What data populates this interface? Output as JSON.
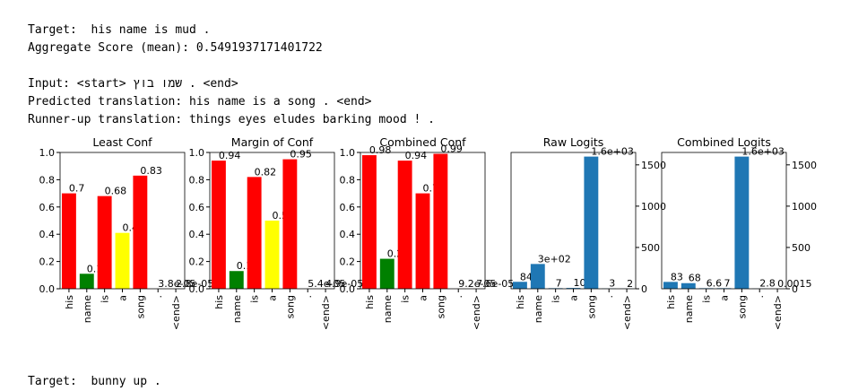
{
  "text": {
    "target": "Target:  his name is mud .",
    "aggregate": "Aggregate Score (mean): 0.5491937171401722",
    "input": "Input: <start> שמו בוץ . <end>",
    "predicted": "Predicted translation: his name is a song . <end>",
    "runner_up": "Runner-up translation: things eyes eludes barking mood ! .",
    "next_target": "Target:  bunny up ."
  },
  "chart_data": [
    {
      "type": "bar",
      "title": "Least Conf",
      "categories": [
        "his",
        "name",
        "is",
        "a",
        "song",
        ".",
        "<end>"
      ],
      "values": [
        0.7,
        0.11,
        0.68,
        0.41,
        0.83,
        3.8e-05,
        2.8e-05
      ],
      "value_labels": [
        "0.7",
        "0.11",
        "0.68",
        "0.41",
        "0.83",
        "3.8e-05",
        "2.8e-05"
      ],
      "colors": [
        "#ff0000",
        "#008000",
        "#ff0000",
        "#ffff00",
        "#ff0000",
        "#ff0000",
        "#ff0000"
      ],
      "ylim": [
        0,
        1
      ],
      "yticks": [
        {
          "value": 0,
          "label": "0.0"
        },
        {
          "value": 0.2,
          "label": "0.2"
        },
        {
          "value": 0.4,
          "label": "0.4"
        },
        {
          "value": 0.6,
          "label": "0.6"
        },
        {
          "value": 0.8,
          "label": "0.8"
        },
        {
          "value": 1,
          "label": "1.0"
        }
      ],
      "y_axis_side": "left"
    },
    {
      "type": "bar",
      "title": "Margin of Conf",
      "categories": [
        "his",
        "name",
        "is",
        "a",
        "song",
        ".",
        "<end>"
      ],
      "values": [
        0.94,
        0.13,
        0.82,
        0.5,
        0.95,
        5.4e-05,
        4.9e-05
      ],
      "value_labels": [
        "0.94",
        "0.13",
        "0.82",
        "0.5",
        "0.95",
        "5.4e-05",
        "4.9e-05"
      ],
      "colors": [
        "#ff0000",
        "#008000",
        "#ff0000",
        "#ffff00",
        "#ff0000",
        "#ff0000",
        "#ff0000"
      ],
      "ylim": [
        0,
        1
      ],
      "yticks": [
        {
          "value": 0,
          "label": "0.0"
        },
        {
          "value": 0.2,
          "label": "0.2"
        },
        {
          "value": 0.4,
          "label": "0.4"
        },
        {
          "value": 0.6,
          "label": "0.6"
        },
        {
          "value": 0.8,
          "label": "0.8"
        },
        {
          "value": 1,
          "label": "1.0"
        }
      ],
      "y_axis_side": "left"
    },
    {
      "type": "bar",
      "title": "Combined Conf",
      "categories": [
        "his",
        "name",
        "is",
        "a",
        "song",
        ".",
        "<end>"
      ],
      "values": [
        0.98,
        0.22,
        0.94,
        0.7,
        0.99,
        9.2e-05,
        7.6e-05
      ],
      "value_labels": [
        "0.98",
        "0.22",
        "0.94",
        "0.7",
        "0.99",
        "9.2e-05",
        "7.6e-05"
      ],
      "colors": [
        "#ff0000",
        "#008000",
        "#ff0000",
        "#ff0000",
        "#ff0000",
        "#ff0000",
        "#ff0000"
      ],
      "ylim": [
        0,
        1
      ],
      "yticks": [
        {
          "value": 0,
          "label": "0.0"
        },
        {
          "value": 0.2,
          "label": "0.2"
        },
        {
          "value": 0.4,
          "label": "0.4"
        },
        {
          "value": 0.6,
          "label": "0.6"
        },
        {
          "value": 0.8,
          "label": "0.8"
        },
        {
          "value": 1,
          "label": "1.0"
        }
      ],
      "y_axis_side": "left"
    },
    {
      "type": "bar",
      "title": "Raw Logits",
      "categories": [
        "his",
        "name",
        "is",
        "a",
        "song",
        ".",
        "<end>"
      ],
      "values": [
        84,
        300,
        7,
        10,
        1600,
        3,
        2
      ],
      "value_labels": [
        "84",
        "3e+02",
        "7",
        "10",
        "1.6e+03",
        "3",
        "2"
      ],
      "colors": [
        "#1f77b4",
        "#1f77b4",
        "#1f77b4",
        "#1f77b4",
        "#1f77b4",
        "#1f77b4",
        "#1f77b4"
      ],
      "ylim": [
        0,
        1650
      ],
      "yticks": [
        0,
        500,
        1000,
        1500
      ],
      "y_axis_side": "right"
    },
    {
      "type": "bar",
      "title": "Combined Logits",
      "categories": [
        "his",
        "name",
        "is",
        "a",
        "song",
        ".",
        "<end>"
      ],
      "values": [
        83,
        68,
        6.6,
        7,
        1600,
        2.8,
        0.0015
      ],
      "value_labels": [
        "83",
        "68",
        "6.6",
        "7",
        "1.6e+03",
        "2.8",
        "0.0015"
      ],
      "colors": [
        "#1f77b4",
        "#1f77b4",
        "#1f77b4",
        "#1f77b4",
        "#1f77b4",
        "#1f77b4",
        "#1f77b4"
      ],
      "ylim": [
        0,
        1650
      ],
      "yticks": [
        0,
        500,
        1000,
        1500
      ],
      "y_axis_side": "right"
    }
  ]
}
